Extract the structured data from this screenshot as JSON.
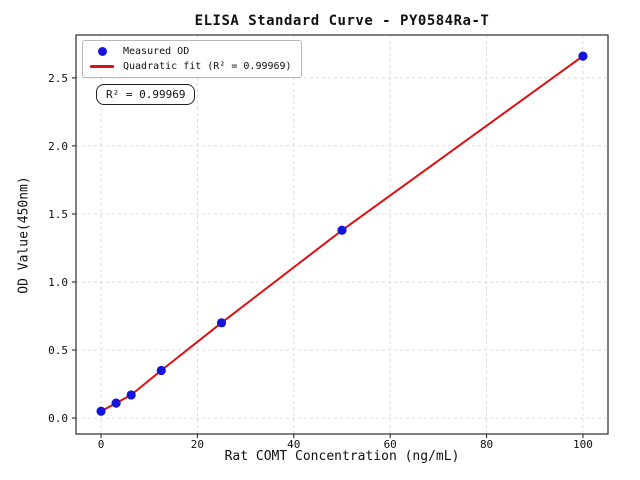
{
  "chart_data": {
    "type": "scatter",
    "title": "ELISA Standard Curve - PY0584Ra-T",
    "xlabel": "Rat COMT Concentration (ng/mL)",
    "ylabel": "OD Value(450nm)",
    "series": [
      {
        "name": "Measured OD",
        "type": "scatter",
        "x": [
          0,
          3.125,
          6.25,
          12.5,
          25,
          50,
          100
        ],
        "y": [
          0.05,
          0.11,
          0.17,
          0.35,
          0.7,
          1.38,
          2.66
        ]
      },
      {
        "name": "Quadratic fit (R² = 0.99969)",
        "type": "line",
        "x": [
          0,
          3.125,
          6.25,
          12.5,
          25,
          50,
          100
        ],
        "y": [
          0.05,
          0.11,
          0.17,
          0.35,
          0.7,
          1.38,
          2.66
        ]
      }
    ],
    "fit": {
      "kind": "quadratic",
      "r_squared": 0.99969
    },
    "legend": [
      "Measured OD",
      "Quadratic fit (R² = 0.99969)"
    ],
    "legend_position": "upper left",
    "annotation": "R² = 0.99969",
    "x_ticks": [
      0,
      20,
      40,
      60,
      80,
      100
    ],
    "x_tick_labels": [
      "0",
      "20",
      "40",
      "60",
      "80",
      "100"
    ],
    "y_ticks": [
      0.0,
      0.5,
      1.0,
      1.5,
      2.0,
      2.5
    ],
    "y_tick_labels": [
      "0.0",
      "0.5",
      "1.0",
      "1.5",
      "2.0",
      "2.5"
    ],
    "xlim": [
      -5.2,
      105.2
    ],
    "ylim": [
      -0.117,
      2.815
    ],
    "grid": true,
    "colors": {
      "points": "#1414dd",
      "line": "#dd1111",
      "grid": "#d9d9d9",
      "spine": "#2b2b2b",
      "tick_text": "#111111"
    }
  }
}
